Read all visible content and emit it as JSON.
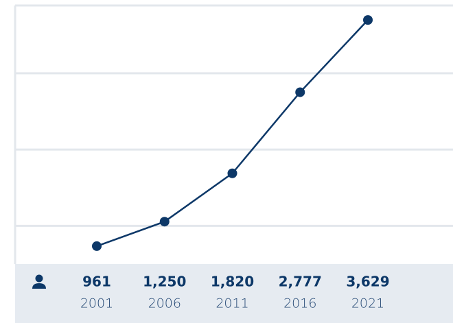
{
  "chart_data": {
    "type": "line",
    "categories": [
      "2001",
      "2006",
      "2011",
      "2016",
      "2021"
    ],
    "values": [
      961,
      1250,
      1820,
      2777,
      3629
    ],
    "value_labels": [
      "961",
      "1,250",
      "1,820",
      "2,777",
      "3,629"
    ],
    "color": "#0d3868",
    "ylim": [
      750,
      3800
    ],
    "yticks": [
      1200,
      2100,
      3000,
      3800
    ],
    "grid": true
  }
}
